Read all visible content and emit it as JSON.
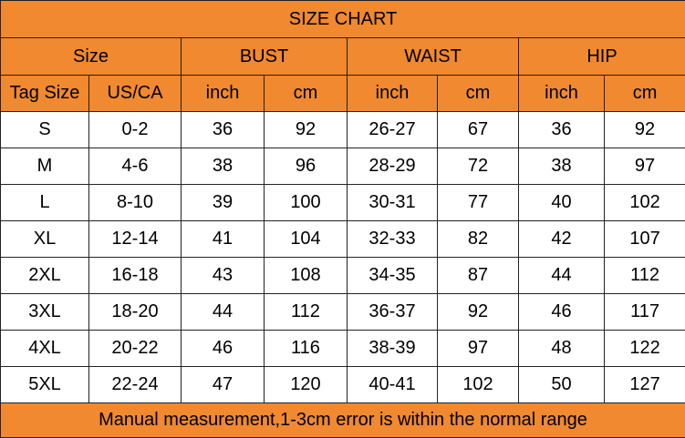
{
  "title": "SIZE CHART",
  "groups": {
    "size": "Size",
    "bust": "BUST",
    "waist": "WAIST",
    "hip": "HIP"
  },
  "columns": [
    "Tag Size",
    "US/CA",
    "inch",
    "cm",
    "inch",
    "cm",
    "inch",
    "cm"
  ],
  "rows": [
    [
      "S",
      "0-2",
      "36",
      "92",
      "26-27",
      "67",
      "36",
      "92"
    ],
    [
      "M",
      "4-6",
      "38",
      "96",
      "28-29",
      "72",
      "38",
      "97"
    ],
    [
      "L",
      "8-10",
      "39",
      "100",
      "30-31",
      "77",
      "40",
      "102"
    ],
    [
      "XL",
      "12-14",
      "41",
      "104",
      "32-33",
      "82",
      "42",
      "107"
    ],
    [
      "2XL",
      "16-18",
      "43",
      "108",
      "34-35",
      "87",
      "44",
      "112"
    ],
    [
      "3XL",
      "18-20",
      "44",
      "112",
      "36-37",
      "92",
      "46",
      "117"
    ],
    [
      "4XL",
      "20-22",
      "46",
      "116",
      "38-39",
      "97",
      "48",
      "122"
    ],
    [
      "5XL",
      "22-24",
      "47",
      "120",
      "40-41",
      "102",
      "50",
      "127"
    ]
  ],
  "footer": "Manual measurement,1-3cm error is within the normal range",
  "colors": {
    "header_background": "#f0892f",
    "body_background": "#ffffff",
    "border": "#222222"
  }
}
